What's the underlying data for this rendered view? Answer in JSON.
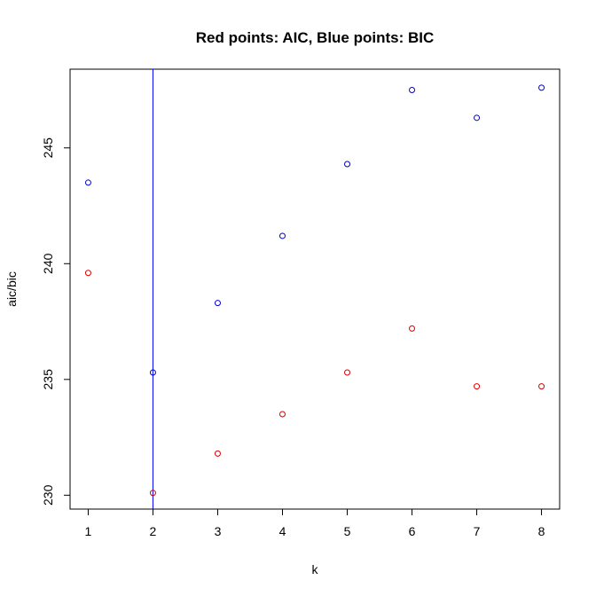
{
  "chart_data": {
    "type": "scatter",
    "title": "Red points: AIC, Blue points: BIC",
    "xlabel": "k",
    "ylabel": "aic/bic",
    "xlim": [
      0.72,
      8.28
    ],
    "ylim": [
      229.4,
      248.4
    ],
    "x_ticks": [
      1,
      2,
      3,
      4,
      5,
      6,
      7,
      8
    ],
    "y_ticks": [
      230,
      235,
      240,
      245
    ],
    "x": [
      1,
      2,
      3,
      4,
      5,
      6,
      7,
      8
    ],
    "series": [
      {
        "color": "#dd0000",
        "values": [
          239.6,
          230.1,
          231.8,
          233.5,
          235.3,
          237.2,
          234.7,
          234.7
        ]
      },
      {
        "color": "#0000cc",
        "values": [
          243.5,
          235.3,
          238.3,
          241.2,
          244.3,
          247.5,
          246.3,
          247.6
        ]
      }
    ],
    "vline": {
      "x": 2,
      "color": "#0000ff"
    },
    "grid": false,
    "legend": "none"
  }
}
